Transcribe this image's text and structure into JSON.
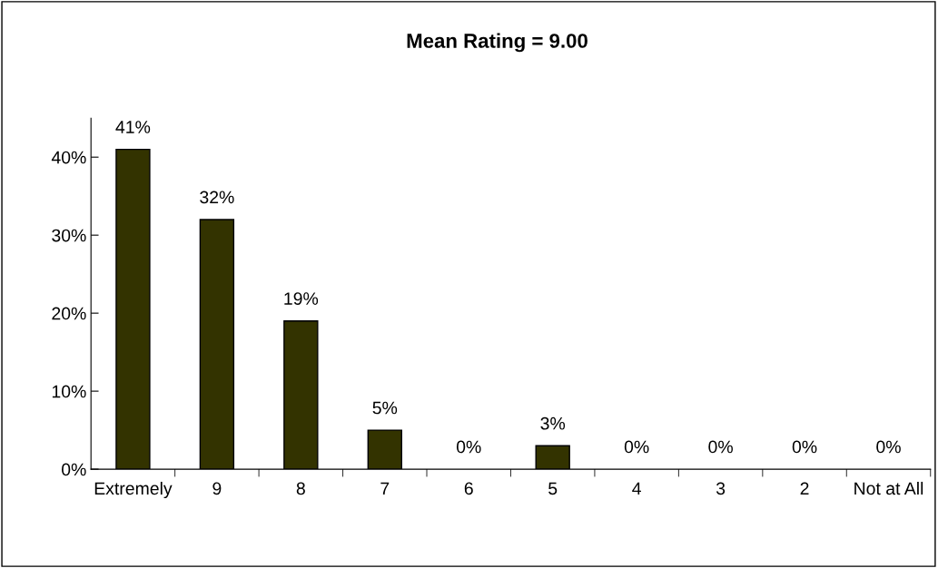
{
  "chart_data": {
    "type": "bar",
    "title": "Mean Rating = 9.00",
    "categories": [
      "Extremely",
      "9",
      "8",
      "7",
      "6",
      "5",
      "4",
      "3",
      "2",
      "Not at All"
    ],
    "values": [
      41,
      32,
      19,
      5,
      0,
      3,
      0,
      0,
      0,
      0
    ],
    "value_labels": [
      "41%",
      "32%",
      "19%",
      "5%",
      "0%",
      "3%",
      "0%",
      "0%",
      "0%",
      "0%"
    ],
    "color": "#333300",
    "ylim": [
      0,
      45
    ],
    "yticks": [
      {
        "value": 0,
        "label": "0%"
      },
      {
        "value": 10,
        "label": "10%"
      },
      {
        "value": 20,
        "label": "20%"
      },
      {
        "value": 30,
        "label": "30%"
      },
      {
        "value": 40,
        "label": "40%"
      }
    ],
    "grid": false,
    "legend": false
  }
}
